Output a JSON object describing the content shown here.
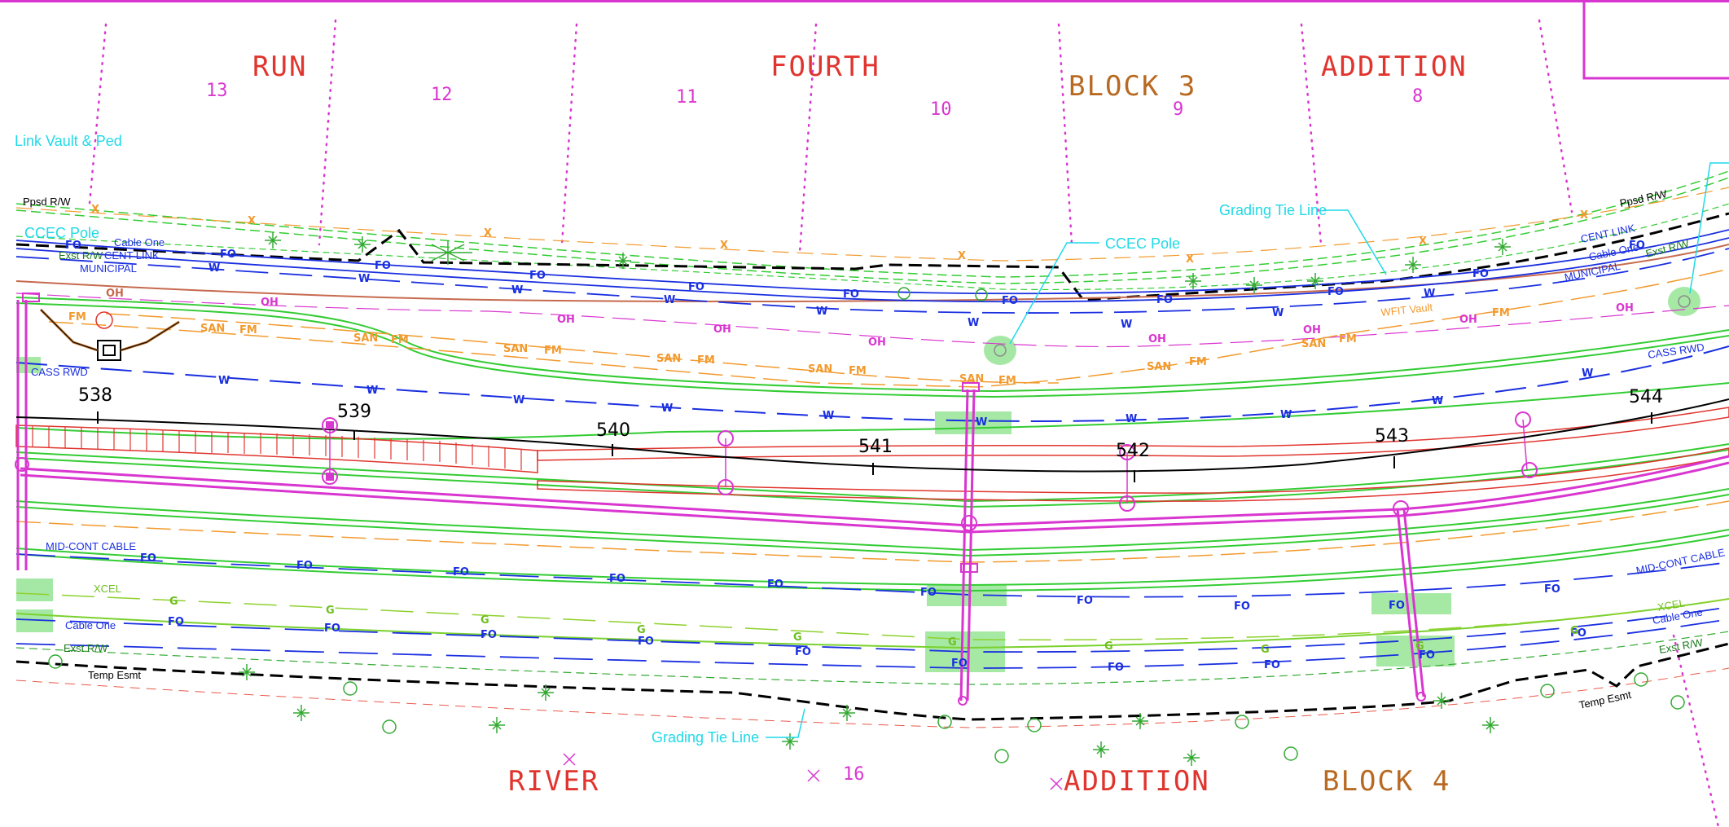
{
  "area_labels": {
    "run": "RUN",
    "fourth": "FOURTH",
    "block3": "BLOCK 3",
    "addition_top": "ADDITION",
    "river": "RIVER",
    "addition_bottom": "ADDITION",
    "block4": "BLOCK 4"
  },
  "lot_numbers": {
    "lot13": "13",
    "lot12": "12",
    "lot11": "11",
    "lot10": "10",
    "lot9": "9",
    "lot8": "8",
    "lot16": "16"
  },
  "stations": {
    "s538": "538",
    "s539": "539",
    "s540": "540",
    "s541": "541",
    "s542": "542",
    "s543": "543",
    "s544": "544"
  },
  "callouts": {
    "link_vault": "Link Vault & Ped",
    "ccec_pole_left": "CCEC Pole",
    "ccec_pole_mid": "CCEC Pole",
    "grading_tie_top": "Grading Tie Line",
    "grading_tie_bottom": "Grading Tie Line"
  },
  "line_labels": {
    "ppsd_rw_left": "Ppsd R/W",
    "ppsd_rw_right": "Ppsd R/W",
    "cable_one_top_left": "Cable One",
    "exst_rw_top_left": "Exst R/W",
    "cent_link_left": "CENT LINK",
    "municipal_left": "MUNICIPAL",
    "cent_link_right": "CENT LINK",
    "cable_one_top_right": "Cable One",
    "exst_rw_top_right": "Exst R/W",
    "municipal_right": "MUNICIPAL",
    "wfit_vault": "WFIT Vault",
    "cass_rwd_left": "CASS RWD",
    "cass_rwd_right": "CASS RWD",
    "mid_cont_left": "MID-CONT CABLE",
    "mid_cont_right": "MID-CONT CABLE",
    "xcel_left": "XCEL",
    "xcel_right": "XCEL",
    "cable_one_bottom_left": "Cable One",
    "cable_one_bottom_right": "Cable One",
    "exst_rw_bottom_left": "Exst R/W",
    "exst_rw_bottom_right": "Exst R/W",
    "temp_esmt_left": "Temp Esmt",
    "temp_esmt_right": "Temp Esmt"
  },
  "line_codes": {
    "fo": "FO",
    "w": "W",
    "oh": "OH",
    "san": "SAN",
    "fm": "FM",
    "g": "G",
    "x": "X"
  },
  "colors": {
    "magenta": "#d936d0",
    "red_text": "#e0352e",
    "brown_text": "#b86a22",
    "cyan": "#1fd9e8",
    "blue": "#1a2fe0",
    "green": "#33cc33",
    "orange": "#f29a2e",
    "brown_line": "#c66a4e",
    "black": "#000000",
    "highlight": "#8fe38f"
  }
}
